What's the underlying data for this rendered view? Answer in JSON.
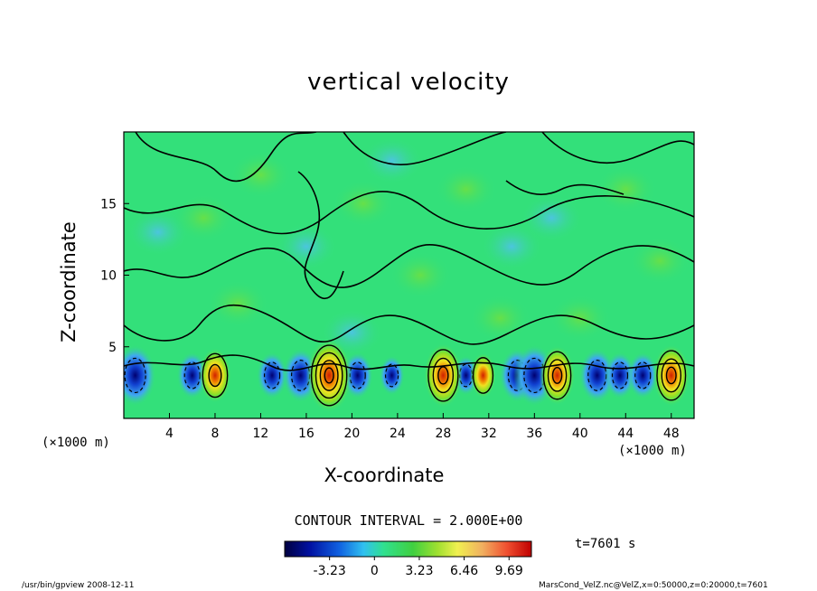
{
  "chart_data": {
    "type": "heatmap",
    "title": "vertical velocity",
    "xlabel": "X-coordinate",
    "ylabel": "Z-coordinate",
    "x_unit_left": "(×1000 m)",
    "x_unit_right": "(×1000 m)",
    "xlim": [
      0,
      50
    ],
    "ylim": [
      0,
      20
    ],
    "x_ticks": [
      4,
      8,
      12,
      16,
      20,
      24,
      28,
      32,
      36,
      40,
      44,
      48
    ],
    "y_ticks": [
      5,
      10,
      15
    ],
    "grid": false,
    "contour_interval_label": "CONTOUR INTERVAL = 2.000E+00",
    "colorbar_ticks": [
      "-3.23",
      "0",
      "3.23",
      "6.46",
      "9.69"
    ],
    "colorbar_range": [
      -6.46,
      11.3
    ],
    "time_label": "t=7601 s",
    "updrafts_x": [
      8,
      18,
      28,
      31.5,
      38,
      48
    ],
    "updraft_peaks": [
      5.5,
      9.7,
      7.5,
      3.5,
      6.5,
      7.0
    ],
    "downdrafts_x": [
      1,
      6,
      13,
      15.5,
      20.5,
      23.5,
      30,
      34.5,
      36,
      41.5,
      43.5,
      45.5
    ],
    "downdraft_troughs": [
      -5,
      -3,
      -3,
      -4,
      -3,
      -2,
      -2,
      -4,
      -5,
      -4,
      -3,
      -3
    ],
    "plume_height": 3.0,
    "colors": {
      "background_field": "#33e07a",
      "strong_negative": "#000060",
      "negative": "#3da6f0",
      "positive": "#f0e020",
      "strong_positive": "#d02000"
    }
  },
  "footer_left": "/usr/bin/gpview   2008-12-11",
  "footer_right": "MarsCond_VelZ.nc@VelZ,x=0:50000,z=0:20000,t=7601"
}
